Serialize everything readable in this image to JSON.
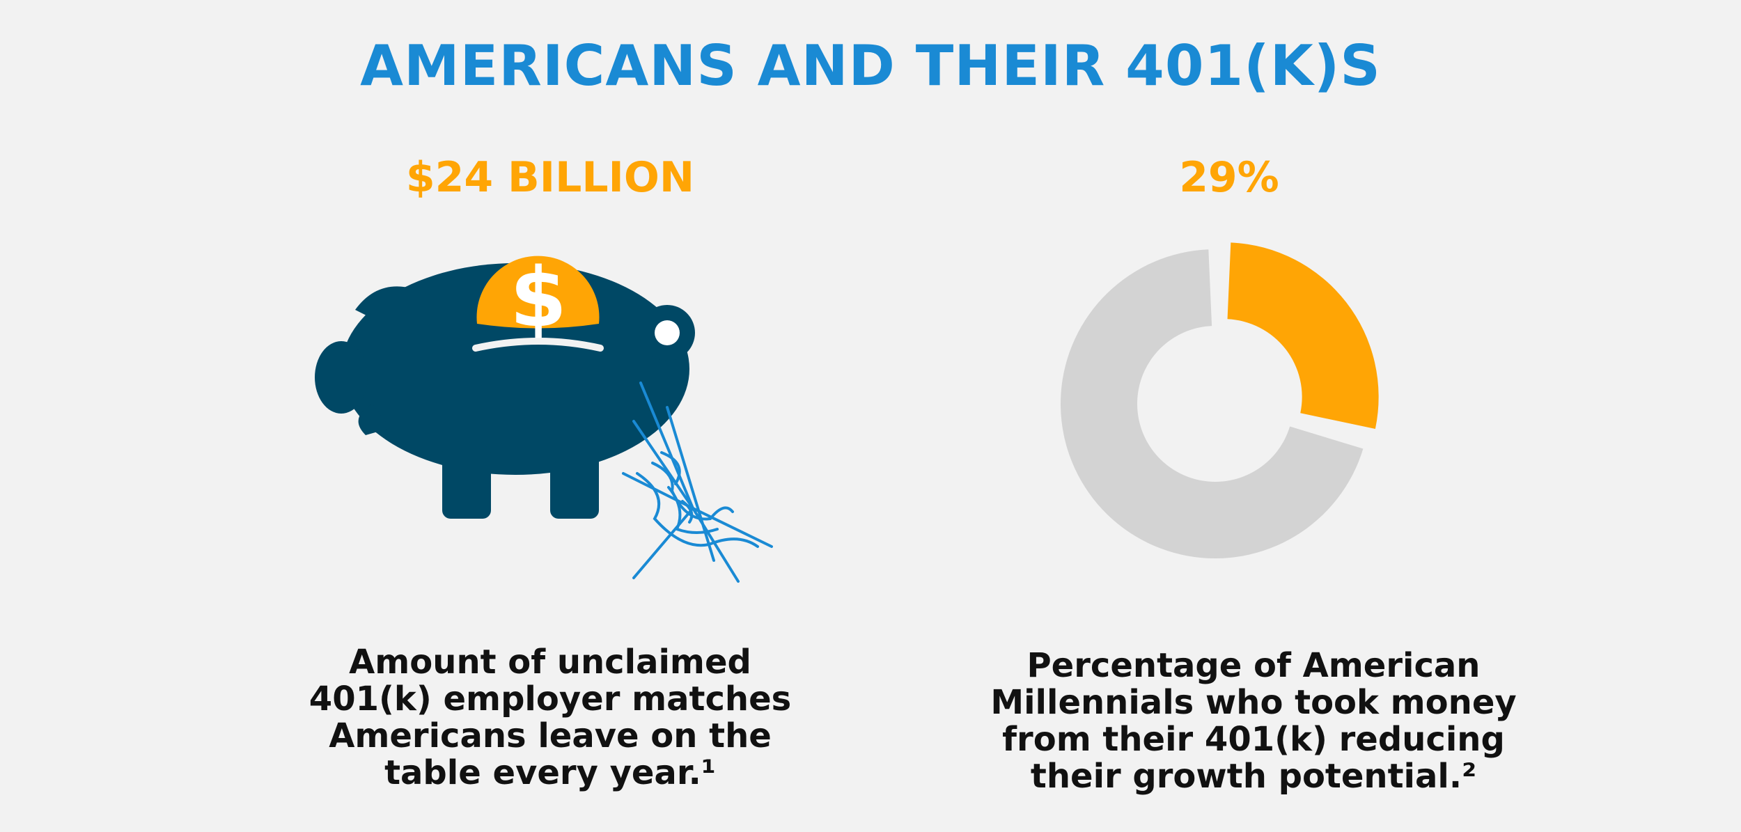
{
  "title": "AMERICANS AND THEIR 401(K)S",
  "colors": {
    "title": "#1a8ad4",
    "accent": "#ffa505",
    "pig": "#004865",
    "web": "#1a8ad4",
    "donut_rest": "#d3d3d3"
  },
  "left_stat": {
    "value": "$24 BILLION",
    "description_lines": [
      "Amount of unclaimed",
      "401(k) employer matches",
      "Americans leave on the",
      "table every year.¹"
    ],
    "icon": "piggy-bank-icon"
  },
  "right_stat": {
    "value": "29%",
    "percent": 29,
    "description_lines": [
      "Percentage of American",
      "Millennials who took money",
      "from their 401(k) reducing",
      "their growth potential.²"
    ]
  },
  "chart_data": {
    "type": "pie",
    "categories": [
      "",
      ""
    ],
    "values": [
      29,
      71
    ],
    "title": ""
  }
}
